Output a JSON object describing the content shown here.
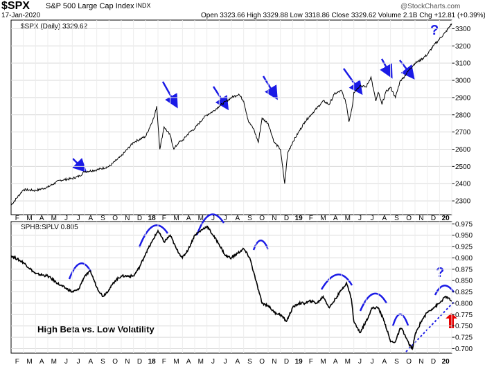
{
  "header": {
    "ticker": "$SPX",
    "name": "S&P 500 Large Cap Index",
    "exchange": "INDX",
    "date": "17-Jan-2020",
    "ohlc": "Open 3323.66  High 3329.88  Low 3318.86  Close 3329.62  Volume 2.1B  Chg +12.81 (+0.39%)",
    "brand": "@StockCharts.com"
  },
  "colors": {
    "arrow": "#1a1ae6",
    "arc": "#1a1ae6",
    "up_arrow": "#e60000",
    "line": "#000000"
  },
  "chart_data": [
    {
      "type": "line",
      "title": "$SPX (Daily) 3329.62",
      "ylim": [
        2220,
        3350
      ],
      "y_ticks": [
        2300,
        2400,
        2500,
        2600,
        2700,
        2800,
        2900,
        3000,
        3100,
        3200,
        3300
      ],
      "x_month_labels": [
        "F",
        "M",
        "A",
        "M",
        "J",
        "J",
        "A",
        "S",
        "O",
        "N",
        "D",
        "18",
        "F",
        "M",
        "A",
        "M",
        "J",
        "J",
        "A",
        "S",
        "O",
        "N",
        "D",
        "19",
        "F",
        "M",
        "A",
        "M",
        "J",
        "J",
        "A",
        "S",
        "O",
        "N",
        "D",
        "20"
      ],
      "t_range": [
        0,
        36
      ],
      "series": [
        {
          "name": "$SPX",
          "points": [
            [
              0,
              2275
            ],
            [
              1,
              2365
            ],
            [
              2,
              2360
            ],
            [
              3,
              2380
            ],
            [
              4,
              2420
            ],
            [
              5,
              2430
            ],
            [
              5.6,
              2445
            ],
            [
              6,
              2470
            ],
            [
              7,
              2480
            ],
            [
              8,
              2500
            ],
            [
              9,
              2560
            ],
            [
              10,
              2640
            ],
            [
              11,
              2675
            ],
            [
              11.7,
              2790
            ],
            [
              11.9,
              2850
            ],
            [
              12.15,
              2600
            ],
            [
              12.5,
              2730
            ],
            [
              13,
              2680
            ],
            [
              13.3,
              2600
            ],
            [
              13.7,
              2640
            ],
            [
              14,
              2650
            ],
            [
              14.6,
              2700
            ],
            [
              15,
              2720
            ],
            [
              15.7,
              2780
            ],
            [
              16,
              2800
            ],
            [
              16.5,
              2820
            ],
            [
              17,
              2850
            ],
            [
              17.6,
              2880
            ],
            [
              18,
              2900
            ],
            [
              18.6,
              2920
            ],
            [
              19,
              2880
            ],
            [
              19.4,
              2760
            ],
            [
              19.8,
              2720
            ],
            [
              20.2,
              2640
            ],
            [
              20.5,
              2780
            ],
            [
              21,
              2750
            ],
            [
              21.5,
              2640
            ],
            [
              22,
              2600
            ],
            [
              22.35,
              2400
            ],
            [
              22.6,
              2580
            ],
            [
              23,
              2640
            ],
            [
              23.5,
              2700
            ],
            [
              24,
              2760
            ],
            [
              24.5,
              2800
            ],
            [
              25,
              2840
            ],
            [
              25.5,
              2880
            ],
            [
              26,
              2860
            ],
            [
              26.4,
              2920
            ],
            [
              27,
              2940
            ],
            [
              27.4,
              2860
            ],
            [
              27.6,
              2760
            ],
            [
              27.9,
              2860
            ],
            [
              28,
              2930
            ],
            [
              28.5,
              2970
            ],
            [
              29,
              2960
            ],
            [
              29.4,
              3020
            ],
            [
              29.8,
              2880
            ],
            [
              30,
              2930
            ],
            [
              30.3,
              2860
            ],
            [
              30.6,
              2930
            ],
            [
              31,
              2960
            ],
            [
              31.4,
              2900
            ],
            [
              31.8,
              3000
            ],
            [
              32,
              3010
            ],
            [
              32.5,
              3060
            ],
            [
              33,
              3100
            ],
            [
              33.5,
              3120
            ],
            [
              34,
              3150
            ],
            [
              34.5,
              3200
            ],
            [
              35,
              3240
            ],
            [
              35.5,
              3280
            ],
            [
              36,
              3329.62
            ]
          ]
        }
      ],
      "annotations": [
        "?"
      ]
    },
    {
      "type": "line",
      "title": "SPHB:SPLV 0.805",
      "ylim": [
        0.69,
        0.98
      ],
      "y_ticks": [
        0.7,
        0.725,
        0.75,
        0.775,
        0.8,
        0.825,
        0.85,
        0.875,
        0.9,
        0.925,
        0.95,
        0.975
      ],
      "x_month_labels": [
        "F",
        "M",
        "A",
        "M",
        "J",
        "J",
        "A",
        "S",
        "O",
        "N",
        "D",
        "18",
        "F",
        "M",
        "A",
        "M",
        "J",
        "J",
        "A",
        "S",
        "O",
        "N",
        "D",
        "19",
        "F",
        "M",
        "A",
        "M",
        "J",
        "J",
        "A",
        "S",
        "O",
        "N",
        "D",
        "20"
      ],
      "t_range": [
        0,
        36
      ],
      "series": [
        {
          "name": "SPHB:SPLV",
          "points": [
            [
              0,
              0.905
            ],
            [
              1,
              0.89
            ],
            [
              2,
              0.865
            ],
            [
              3,
              0.86
            ],
            [
              4,
              0.84
            ],
            [
              5,
              0.825
            ],
            [
              5.5,
              0.83
            ],
            [
              6,
              0.86
            ],
            [
              6.5,
              0.87
            ],
            [
              7,
              0.835
            ],
            [
              7.5,
              0.815
            ],
            [
              8,
              0.83
            ],
            [
              8.5,
              0.85
            ],
            [
              9,
              0.86
            ],
            [
              10,
              0.86
            ],
            [
              10.5,
              0.88
            ],
            [
              11,
              0.91
            ],
            [
              11.5,
              0.935
            ],
            [
              12,
              0.96
            ],
            [
              12.5,
              0.935
            ],
            [
              13,
              0.95
            ],
            [
              13.5,
              0.92
            ],
            [
              14,
              0.9
            ],
            [
              14.5,
              0.92
            ],
            [
              15,
              0.95
            ],
            [
              15.5,
              0.96
            ],
            [
              16,
              0.97
            ],
            [
              16.5,
              0.95
            ],
            [
              17,
              0.93
            ],
            [
              17.5,
              0.905
            ],
            [
              18,
              0.9
            ],
            [
              18.5,
              0.91
            ],
            [
              19,
              0.92
            ],
            [
              19.5,
              0.9
            ],
            [
              20,
              0.85
            ],
            [
              20.5,
              0.8
            ],
            [
              21,
              0.795
            ],
            [
              21.5,
              0.78
            ],
            [
              22,
              0.775
            ],
            [
              22.5,
              0.76
            ],
            [
              23,
              0.79
            ],
            [
              23.5,
              0.8
            ],
            [
              24,
              0.8
            ],
            [
              24.5,
              0.805
            ],
            [
              25,
              0.8
            ],
            [
              25.5,
              0.815
            ],
            [
              26,
              0.79
            ],
            [
              26.5,
              0.81
            ],
            [
              27,
              0.83
            ],
            [
              27.4,
              0.845
            ],
            [
              27.8,
              0.81
            ],
            [
              28,
              0.76
            ],
            [
              28.5,
              0.735
            ],
            [
              29,
              0.76
            ],
            [
              29.5,
              0.79
            ],
            [
              30,
              0.79
            ],
            [
              30.5,
              0.76
            ],
            [
              31,
              0.715
            ],
            [
              31.4,
              0.715
            ],
            [
              31.8,
              0.745
            ],
            [
              32,
              0.74
            ],
            [
              32.5,
              0.71
            ],
            [
              32.8,
              0.7
            ],
            [
              33,
              0.73
            ],
            [
              33.5,
              0.76
            ],
            [
              34,
              0.78
            ],
            [
              34.5,
              0.79
            ],
            [
              35,
              0.8
            ],
            [
              35.5,
              0.815
            ],
            [
              36,
              0.805
            ]
          ]
        }
      ],
      "annotations": [
        "High Beta vs. Low Volatility",
        "?"
      ]
    }
  ]
}
